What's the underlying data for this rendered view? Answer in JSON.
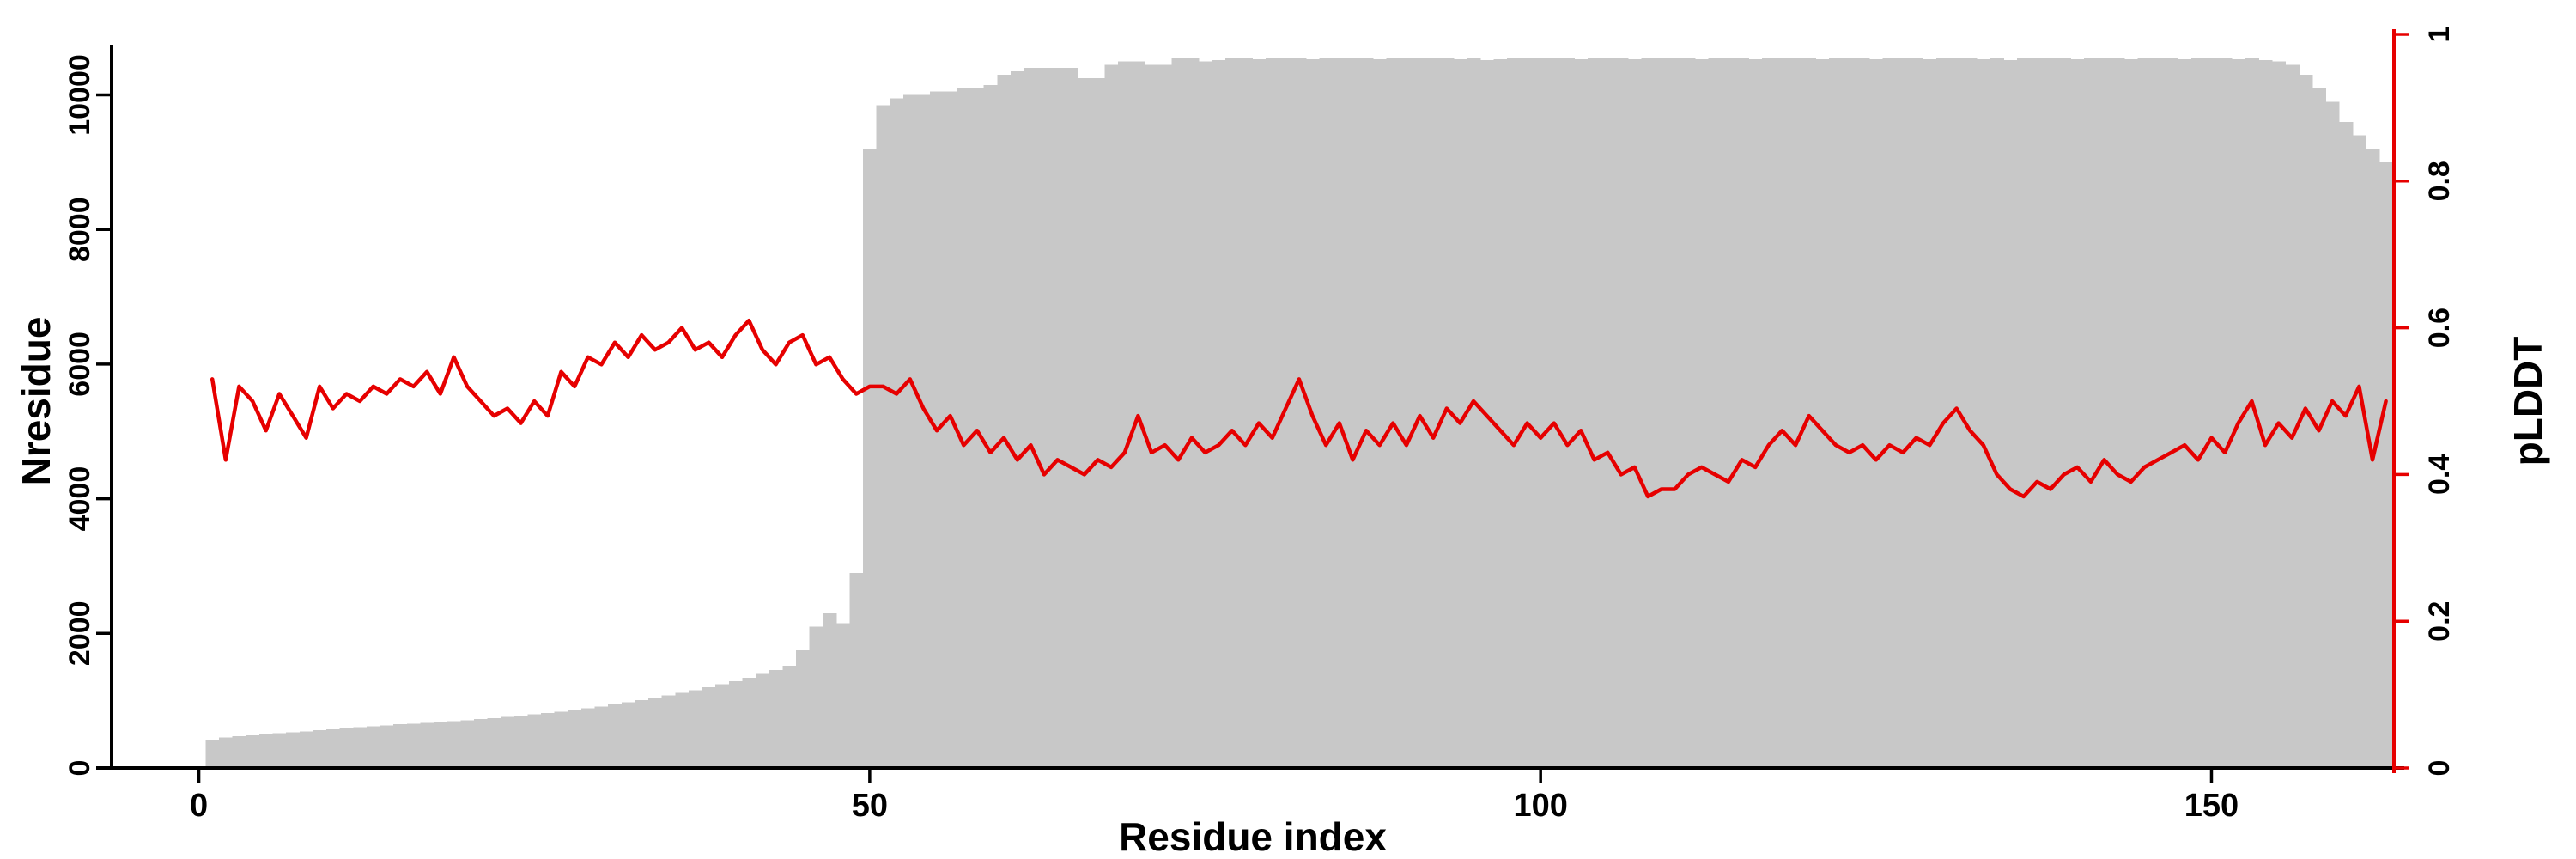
{
  "chart_data": {
    "type": "bar",
    "title": "",
    "xlabel": "Residue index",
    "ylabel_left": "Nresidue",
    "ylabel_right": "pLDDT",
    "x_ticks": [
      0,
      50,
      100,
      150
    ],
    "x_tick_labels": [
      "0",
      "50",
      "100",
      "150"
    ],
    "y_left_ticks": [
      0,
      2000,
      4000,
      6000,
      8000,
      10000
    ],
    "y_left_tick_labels": [
      "0",
      "2000",
      "4000",
      "6000",
      "8000",
      "10000"
    ],
    "y_right_ticks": [
      0,
      0.2,
      0.4,
      0.6,
      0.8,
      1
    ],
    "y_right_tick_labels": [
      "0",
      "0.2",
      "0.4",
      "0.6",
      "0.8",
      "1"
    ],
    "xlim": [
      -6.5,
      163.6
    ],
    "ylim_left": [
      0,
      10900
    ],
    "ylim_right": [
      0,
      1
    ],
    "x_start": 1,
    "x_step": 1,
    "grid": false,
    "legend": "none",
    "background": "#ffffff",
    "bar_color": "#c8c8c8",
    "line_color": "#e60000",
    "axis_color": "#000000",
    "series": [
      {
        "name": "Nresidue",
        "type": "bar",
        "axis": "left",
        "values": [
          420,
          450,
          470,
          485,
          500,
          515,
          530,
          545,
          560,
          575,
          590,
          605,
          620,
          635,
          648,
          660,
          672,
          684,
          696,
          710,
          725,
          740,
          758,
          776,
          795,
          815,
          838,
          862,
          888,
          915,
          945,
          975,
          1008,
          1042,
          1078,
          1115,
          1155,
          1198,
          1242,
          1290,
          1340,
          1395,
          1455,
          1520,
          1750,
          2100,
          2300,
          2150,
          2900,
          9200,
          9850,
          9950,
          10000,
          10000,
          10050,
          10050,
          10100,
          10100,
          10150,
          10300,
          10350,
          10400,
          10400,
          10400,
          10400,
          10250,
          10250,
          10450,
          10500,
          10500,
          10450,
          10450,
          10550,
          10550,
          10500,
          10520,
          10550,
          10550,
          10530,
          10550,
          10540,
          10550,
          10530,
          10550,
          10550,
          10540,
          10550,
          10530,
          10540,
          10550,
          10540,
          10550,
          10550,
          10530,
          10540,
          10520,
          10530,
          10540,
          10550,
          10550,
          10540,
          10550,
          10530,
          10540,
          10550,
          10540,
          10530,
          10550,
          10540,
          10550,
          10540,
          10530,
          10550,
          10540,
          10550,
          10530,
          10540,
          10550,
          10540,
          10550,
          10530,
          10540,
          10550,
          10540,
          10530,
          10550,
          10540,
          10550,
          10530,
          10550,
          10540,
          10550,
          10530,
          10540,
          10520,
          10550,
          10540,
          10550,
          10540,
          10530,
          10550,
          10540,
          10550,
          10530,
          10540,
          10550,
          10540,
          10530,
          10550,
          10540,
          10550,
          10530,
          10540,
          10520,
          10500,
          10450,
          10300,
          10100,
          9900,
          9600,
          9400,
          9200,
          9000
        ]
      },
      {
        "name": "pLDDT",
        "type": "line",
        "axis": "right",
        "values": [
          0.53,
          0.42,
          0.52,
          0.5,
          0.46,
          0.51,
          0.48,
          0.45,
          0.52,
          0.49,
          0.51,
          0.5,
          0.52,
          0.51,
          0.53,
          0.52,
          0.54,
          0.51,
          0.56,
          0.52,
          0.5,
          0.48,
          0.49,
          0.47,
          0.5,
          0.48,
          0.54,
          0.52,
          0.56,
          0.55,
          0.58,
          0.56,
          0.59,
          0.57,
          0.58,
          0.6,
          0.57,
          0.58,
          0.56,
          0.59,
          0.61,
          0.57,
          0.55,
          0.58,
          0.59,
          0.55,
          0.56,
          0.53,
          0.51,
          0.52,
          0.52,
          0.51,
          0.53,
          0.49,
          0.46,
          0.48,
          0.44,
          0.46,
          0.43,
          0.45,
          0.42,
          0.44,
          0.4,
          0.42,
          0.41,
          0.4,
          0.42,
          0.41,
          0.43,
          0.48,
          0.43,
          0.44,
          0.42,
          0.45,
          0.43,
          0.44,
          0.46,
          0.44,
          0.47,
          0.45,
          0.49,
          0.53,
          0.48,
          0.44,
          0.47,
          0.42,
          0.46,
          0.44,
          0.47,
          0.44,
          0.48,
          0.45,
          0.49,
          0.47,
          0.5,
          0.48,
          0.46,
          0.44,
          0.47,
          0.45,
          0.47,
          0.44,
          0.46,
          0.42,
          0.43,
          0.4,
          0.41,
          0.37,
          0.38,
          0.38,
          0.4,
          0.41,
          0.4,
          0.39,
          0.42,
          0.41,
          0.44,
          0.46,
          0.44,
          0.48,
          0.46,
          0.44,
          0.43,
          0.44,
          0.42,
          0.44,
          0.43,
          0.45,
          0.44,
          0.47,
          0.49,
          0.46,
          0.44,
          0.4,
          0.38,
          0.37,
          0.39,
          0.38,
          0.4,
          0.41,
          0.39,
          0.42,
          0.4,
          0.39,
          0.41,
          0.42,
          0.43,
          0.44,
          0.42,
          0.45,
          0.43,
          0.47,
          0.5,
          0.44,
          0.47,
          0.45,
          0.49,
          0.46,
          0.5,
          0.48,
          0.52,
          0.42,
          0.5
        ]
      }
    ]
  }
}
